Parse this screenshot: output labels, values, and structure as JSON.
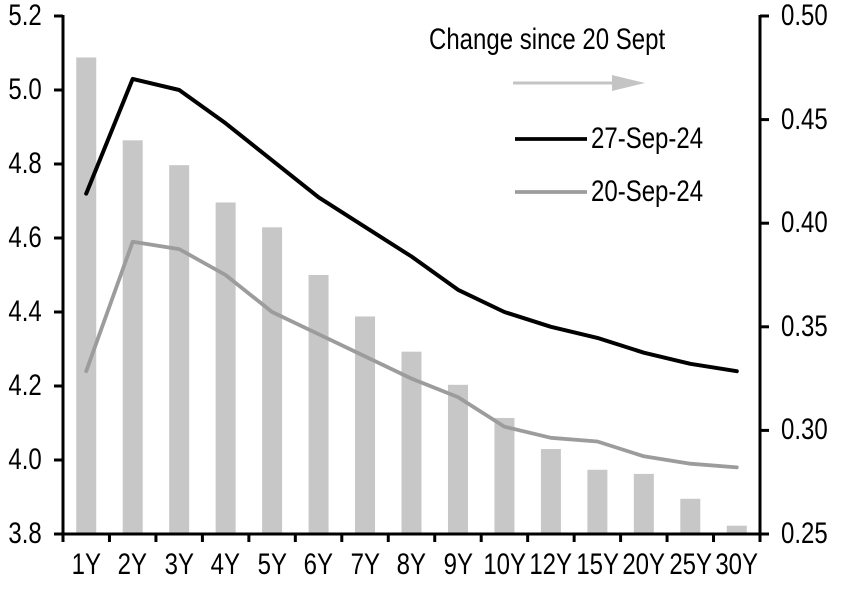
{
  "chart_data": {
    "type": "combo-bar-line",
    "categories": [
      "1Y",
      "2Y",
      "3Y",
      "4Y",
      "5Y",
      "6Y",
      "7Y",
      "8Y",
      "9Y",
      "10Y",
      "12Y",
      "15Y",
      "20Y",
      "25Y",
      "30Y"
    ],
    "series": [
      {
        "name": "Change since 20 Sept",
        "type": "bar",
        "axis": "right",
        "color": "#c7c7c7",
        "values": [
          0.48,
          0.44,
          0.428,
          0.41,
          0.398,
          0.375,
          0.355,
          0.338,
          0.322,
          0.306,
          0.291,
          0.281,
          0.279,
          0.267,
          0.254
        ]
      },
      {
        "name": "27-Sep-24",
        "type": "line",
        "axis": "left",
        "color": "#000000",
        "values": [
          4.72,
          5.03,
          5.0,
          4.91,
          4.81,
          4.71,
          4.63,
          4.55,
          4.46,
          4.4,
          4.36,
          4.33,
          4.29,
          4.26,
          4.24
        ]
      },
      {
        "name": "20-Sep-24",
        "type": "line",
        "axis": "left",
        "color": "#9c9c9c",
        "values": [
          4.24,
          4.59,
          4.57,
          4.5,
          4.4,
          4.34,
          4.28,
          4.22,
          4.17,
          4.09,
          4.06,
          4.05,
          4.01,
          3.99,
          3.98
        ]
      }
    ],
    "left_axis": {
      "min": 3.8,
      "max": 5.2,
      "step": 0.2,
      "tick_labels": [
        "3.8",
        "4.0",
        "4.2",
        "4.4",
        "4.6",
        "4.8",
        "5.0",
        "5.2"
      ]
    },
    "right_axis": {
      "min": 0.25,
      "max": 0.5,
      "step": 0.05,
      "tick_labels": [
        "0.25",
        "0.30",
        "0.35",
        "0.40",
        "0.45",
        "0.50"
      ]
    },
    "grid": false,
    "legend": {
      "position": "top-right-inside",
      "title": "Change since 20 Sept",
      "arrow_color": "#c4c4c4",
      "entries": [
        {
          "label": "27-Sep-24",
          "color": "#000000"
        },
        {
          "label": "20-Sep-24",
          "color": "#9c9c9c"
        }
      ]
    }
  }
}
